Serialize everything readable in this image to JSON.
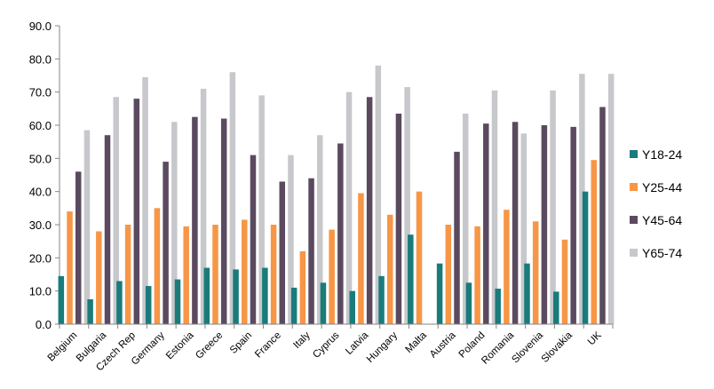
{
  "chart_data": {
    "type": "bar",
    "title": "",
    "xlabel": "",
    "ylabel": "",
    "ylim": [
      0,
      90
    ],
    "ytick_step": 10,
    "ytick_labels": [
      "0.0",
      "10.0",
      "20.0",
      "30.0",
      "40.0",
      "50.0",
      "60.0",
      "70.0",
      "80.0",
      "90.0"
    ],
    "grid": false,
    "legend_position": "right",
    "categories": [
      "Belgium",
      "Bulgaria",
      "Czech Rep",
      "Germany",
      "Estonia",
      "Greece",
      "Spain",
      "France",
      "Italy",
      "Cyprus",
      "Latvia",
      "Hungary",
      "Malta",
      "Austria",
      "Poland",
      "Romania",
      "Slovenia",
      "Slovakia",
      "UK"
    ],
    "series": [
      {
        "name": "Y18-24",
        "color": "#1a7b7b",
        "values": [
          14.5,
          7.5,
          13.0,
          11.5,
          13.5,
          17.0,
          16.5,
          17.0,
          11.0,
          12.5,
          10.0,
          14.5,
          27.0,
          18.3,
          12.5,
          10.7,
          18.3,
          9.8,
          40.0
        ]
      },
      {
        "name": "Y25-44",
        "color": "#f79646",
        "values": [
          34.0,
          28.0,
          30.0,
          35.0,
          29.5,
          30.0,
          31.5,
          30.0,
          22.0,
          28.5,
          39.5,
          33.0,
          40.0,
          30.0,
          29.5,
          34.5,
          31.0,
          25.5,
          49.5
        ]
      },
      {
        "name": "Y45-64",
        "color": "#5b4a5f",
        "values": [
          46.0,
          57.0,
          68.0,
          49.0,
          62.5,
          62.0,
          51.0,
          43.0,
          44.0,
          54.5,
          68.5,
          63.5,
          null,
          52.0,
          60.5,
          61.0,
          60.0,
          59.5,
          65.5
        ]
      },
      {
        "name": "Y65-74",
        "color": "#c7c8cb",
        "values": [
          58.5,
          68.5,
          74.5,
          61.0,
          71.0,
          76.0,
          69.0,
          51.0,
          57.0,
          70.0,
          78.0,
          71.5,
          null,
          63.5,
          70.5,
          57.5,
          70.5,
          75.5,
          75.5
        ]
      }
    ]
  }
}
